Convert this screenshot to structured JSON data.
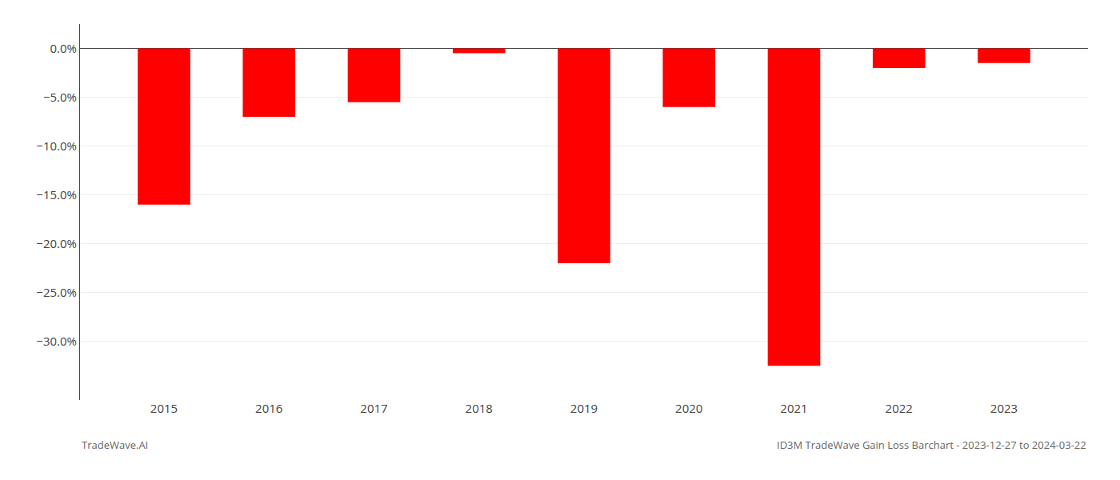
{
  "chart_data": {
    "type": "bar",
    "title": "ID3M TradeWave Gain Loss Barchart - 2023-12-27 to 2024-03-22",
    "annotations": [
      "TradeWave.AI"
    ],
    "categories": [
      "2015",
      "2016",
      "2017",
      "2018",
      "2019",
      "2020",
      "2021",
      "2022",
      "2023"
    ],
    "values": [
      -16.0,
      -7.0,
      -5.5,
      -0.5,
      -22.0,
      -6.0,
      -32.5,
      -2.0,
      -1.5
    ],
    "color": "#ff0000",
    "ylim": [
      -36,
      2.5
    ],
    "yticks": [
      {
        "value": 0,
        "label": "0.0%"
      },
      {
        "value": -5,
        "label": "−5.0%"
      },
      {
        "value": -10,
        "label": "−10.0%"
      },
      {
        "value": -15,
        "label": "−15.0%"
      },
      {
        "value": -20,
        "label": "−20.0%"
      },
      {
        "value": -25,
        "label": "−25.0%"
      },
      {
        "value": -30,
        "label": "−30.0%"
      }
    ],
    "grid": true
  }
}
